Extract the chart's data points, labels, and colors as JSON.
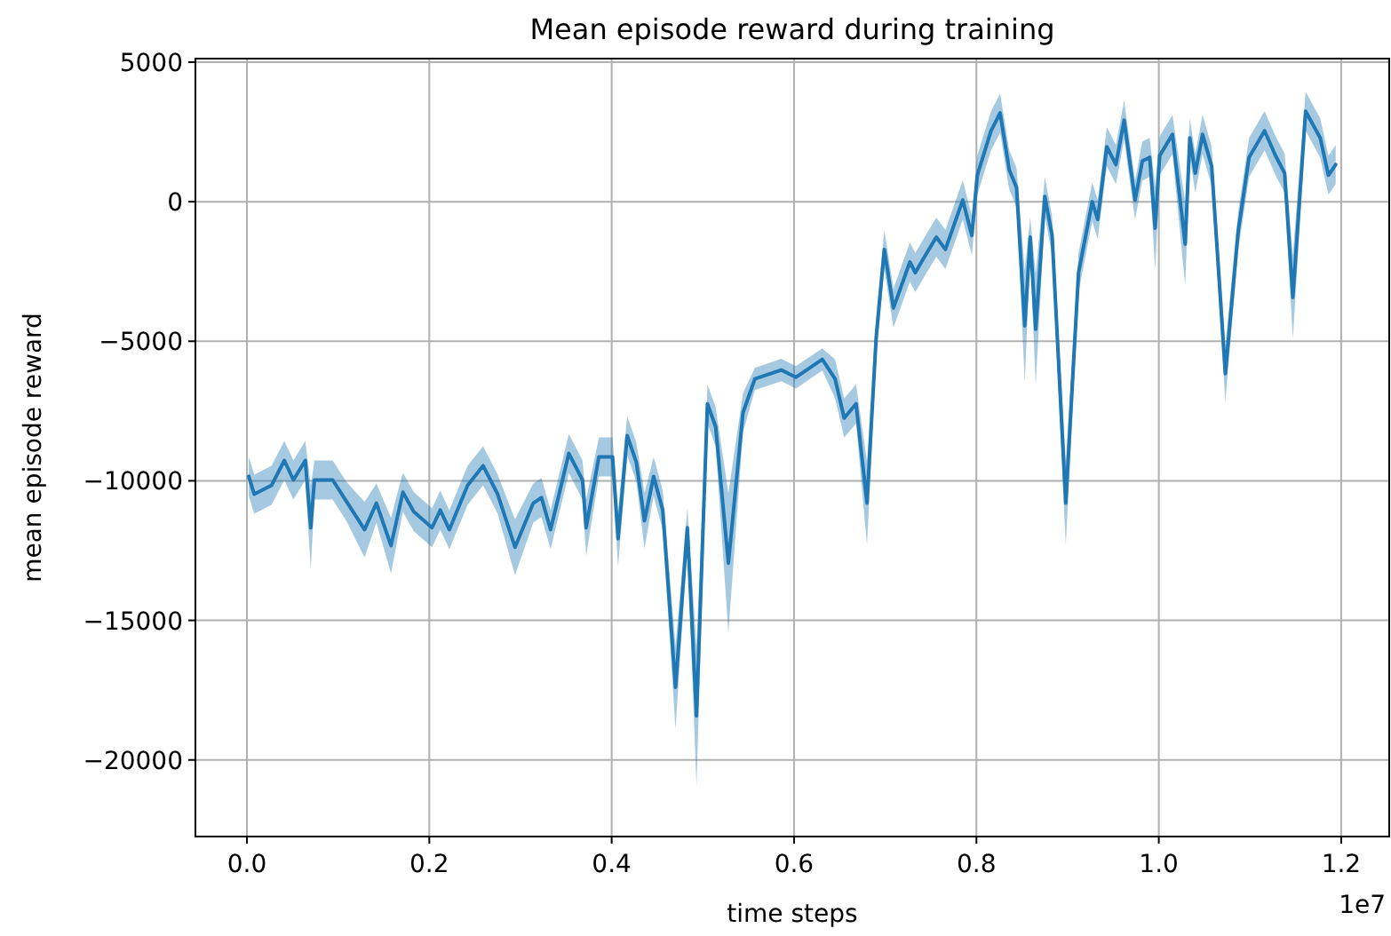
{
  "chart_data": {
    "type": "line",
    "title": "Mean episode reward during training",
    "xlabel": "time steps",
    "ylabel": "mean episode reward",
    "annotations": [
      "1e7"
    ],
    "x": [
      0.002,
      0.008,
      0.027,
      0.041,
      0.051,
      0.064,
      0.07,
      0.074,
      0.094,
      0.109,
      0.129,
      0.142,
      0.158,
      0.171,
      0.183,
      0.203,
      0.212,
      0.222,
      0.242,
      0.259,
      0.275,
      0.294,
      0.314,
      0.323,
      0.333,
      0.353,
      0.368,
      0.372,
      0.386,
      0.401,
      0.407,
      0.417,
      0.427,
      0.436,
      0.446,
      0.456,
      0.47,
      0.483,
      0.493,
      0.505,
      0.514,
      0.528,
      0.544,
      0.557,
      0.586,
      0.602,
      0.631,
      0.645,
      0.655,
      0.668,
      0.68,
      0.69,
      0.699,
      0.709,
      0.727,
      0.733,
      0.742,
      0.756,
      0.766,
      0.785,
      0.795,
      0.801,
      0.816,
      0.826,
      0.836,
      0.844,
      0.853,
      0.859,
      0.865,
      0.875,
      0.883,
      0.898,
      0.912,
      0.927,
      0.933,
      0.943,
      0.953,
      0.962,
      0.974,
      0.982,
      0.99,
      0.996,
      1.001,
      1.015,
      1.029,
      1.034,
      1.04,
      1.048,
      1.058,
      1.073,
      1.087,
      1.099,
      1.116,
      1.128,
      1.138,
      1.147,
      1.161,
      1.177,
      1.186,
      1.194
    ],
    "series": [
      {
        "color": "#1f77b4",
        "values": [
          -9840,
          -10480,
          -10160,
          -9270,
          -9970,
          -9270,
          -11680,
          -9970,
          -9970,
          -10730,
          -11750,
          -10800,
          -12320,
          -10410,
          -11110,
          -11680,
          -11050,
          -11750,
          -10160,
          -9460,
          -10480,
          -12380,
          -10800,
          -10600,
          -11750,
          -9020,
          -9970,
          -11680,
          -9140,
          -9140,
          -12070,
          -8380,
          -9330,
          -11430,
          -9840,
          -11050,
          -17400,
          -11680,
          -18420,
          -7240,
          -8060,
          -12950,
          -7560,
          -6350,
          -6030,
          -6290,
          -5650,
          -6350,
          -7750,
          -7240,
          -10800,
          -4890,
          -1710,
          -3810,
          -2160,
          -2540,
          -2030,
          -1270,
          -1710,
          60,
          -1210,
          950,
          2540,
          3180,
          1140,
          510,
          -4450,
          -1270,
          -4570,
          190,
          -1210,
          -10800,
          -2540,
          0,
          -640,
          1970,
          1330,
          2920,
          60,
          1460,
          1590,
          -950,
          1650,
          2410,
          -1520,
          2290,
          1020,
          2410,
          1270,
          -6160,
          -1080,
          1590,
          2540,
          1650,
          1020,
          -3430,
          3240,
          2290,
          950,
          1330
        ],
        "lower": [
          -10540,
          -11180,
          -10860,
          -9970,
          -10670,
          -9970,
          -13180,
          -10670,
          -10670,
          -11430,
          -12750,
          -11500,
          -13320,
          -11110,
          -11810,
          -12380,
          -11750,
          -12450,
          -10860,
          -10160,
          -11180,
          -13380,
          -11500,
          -11300,
          -12450,
          -9720,
          -10670,
          -12680,
          -9840,
          -9840,
          -13070,
          -9080,
          -10030,
          -12430,
          -10540,
          -11750,
          -18900,
          -12380,
          -20920,
          -7940,
          -8760,
          -15450,
          -8260,
          -6750,
          -6430,
          -6690,
          -6050,
          -7050,
          -8450,
          -7940,
          -12300,
          -5590,
          -2410,
          -4510,
          -2860,
          -3240,
          -2730,
          -1970,
          -2410,
          -640,
          -1910,
          250,
          1840,
          2480,
          440,
          -190,
          -6450,
          -1970,
          -6570,
          -510,
          -1910,
          -12300,
          -3240,
          -700,
          -1340,
          1270,
          630,
          2220,
          -640,
          760,
          890,
          -2450,
          950,
          1710,
          -3020,
          1590,
          320,
          1710,
          570,
          -7160,
          -1780,
          890,
          1840,
          950,
          320,
          -4930,
          2540,
          1590,
          250,
          630
        ],
        "upper": [
          -9140,
          -9780,
          -9460,
          -8570,
          -9270,
          -8570,
          -10180,
          -9270,
          -9270,
          -10030,
          -10750,
          -10100,
          -11320,
          -9710,
          -10410,
          -10980,
          -10350,
          -11050,
          -9460,
          -8760,
          -9780,
          -11380,
          -10100,
          -9900,
          -11050,
          -8320,
          -9270,
          -10680,
          -8440,
          -8440,
          -11070,
          -7680,
          -8630,
          -10430,
          -9140,
          -10350,
          -15900,
          -10980,
          -15920,
          -6540,
          -7360,
          -10450,
          -6860,
          -5950,
          -5630,
          -5890,
          -5250,
          -5650,
          -7050,
          -6540,
          -9300,
          -4190,
          -1010,
          -3110,
          -1460,
          -1840,
          -1330,
          -570,
          -1010,
          760,
          -510,
          1650,
          3240,
          3880,
          1840,
          1210,
          -2450,
          -570,
          -2570,
          890,
          -510,
          -9300,
          -1840,
          700,
          60,
          2670,
          2030,
          3620,
          760,
          2160,
          2290,
          550,
          2350,
          3110,
          -20,
          2990,
          1720,
          3110,
          1970,
          -5160,
          -380,
          2290,
          3240,
          2350,
          1720,
          -1930,
          3940,
          2990,
          1650,
          2030
        ]
      }
    ],
    "xlim": [
      -0.0565,
      1.2527
    ],
    "ylim": [
      -22745,
      5127
    ],
    "xticks": [
      {
        "value": 0,
        "label": "0.0"
      },
      0.2,
      0.4,
      0.6,
      0.8,
      {
        "value": 1,
        "label": "1.0"
      },
      1.2
    ],
    "yticks": [
      {
        "value": -20000,
        "label": "−20000"
      },
      {
        "value": -15000,
        "label": "−15000"
      },
      {
        "value": -10000,
        "label": "−10000"
      },
      {
        "value": -5000,
        "label": "−5000"
      },
      0,
      5000
    ],
    "grid": true
  }
}
